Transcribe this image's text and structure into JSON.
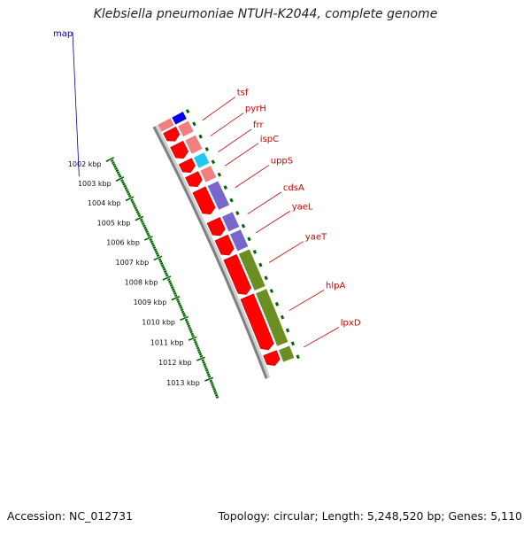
{
  "title": "Klebsiella pneumoniae NTUH-K2044, complete genome",
  "map_link": "map",
  "footer": {
    "accession": "Accession: NC_012731",
    "topology": "Topology: circular; Length: 5,248,520 bp; Genes: 5,110"
  },
  "ticks": [
    {
      "kbp": 1002,
      "label": "1002 kbp"
    },
    {
      "kbp": 1003,
      "label": "1003 kbp"
    },
    {
      "kbp": 1004,
      "label": "1004 kbp"
    },
    {
      "kbp": 1005,
      "label": "1005 kbp"
    },
    {
      "kbp": 1006,
      "label": "1006 kbp"
    },
    {
      "kbp": 1007,
      "label": "1007 kbp"
    },
    {
      "kbp": 1008,
      "label": "1008 kbp"
    },
    {
      "kbp": 1009,
      "label": "1009 kbp"
    },
    {
      "kbp": 1010,
      "label": "1010 kbp"
    },
    {
      "kbp": 1011,
      "label": "1011 kbp"
    },
    {
      "kbp": 1012,
      "label": "1012 kbp"
    },
    {
      "kbp": 1013,
      "label": "1013 kbp"
    }
  ],
  "genes": [
    {
      "name": "tsf",
      "start": 1002.05,
      "end": 1002.6,
      "cog_color": "#f08080"
    },
    {
      "name": "pyrH",
      "start": 1002.75,
      "end": 1003.45,
      "cog_color": "#f08080"
    },
    {
      "name": "frr",
      "start": 1003.6,
      "end": 1004.15,
      "cog_color": "#1ec8f0"
    },
    {
      "name": "ispC",
      "start": 1004.25,
      "end": 1004.85,
      "cog_color": "#f08080"
    },
    {
      "name": "uppS",
      "start": 1005.0,
      "end": 1006.2,
      "cog_color": "#7766cc"
    },
    {
      "name": "cdsA",
      "start": 1006.5,
      "end": 1007.25,
      "cog_color": "#7766cc"
    },
    {
      "name": "yaeL",
      "start": 1007.35,
      "end": 1008.2,
      "cog_color": "#7766cc"
    },
    {
      "name": "yaeT",
      "start": 1008.3,
      "end": 1010.1,
      "cog_color": "#6b8e23"
    },
    {
      "name": "hlpA",
      "start": 1010.2,
      "end": 1012.75,
      "cog_color": "#6b8e23"
    },
    {
      "name": "lpxD",
      "start": 1012.9,
      "end": 1013.5,
      "cog_color": "#6b8e23"
    }
  ],
  "colors": {
    "cds": "#ff0000",
    "backbone": "#808080",
    "tick": "#006600",
    "label_line": "#cc0000"
  }
}
